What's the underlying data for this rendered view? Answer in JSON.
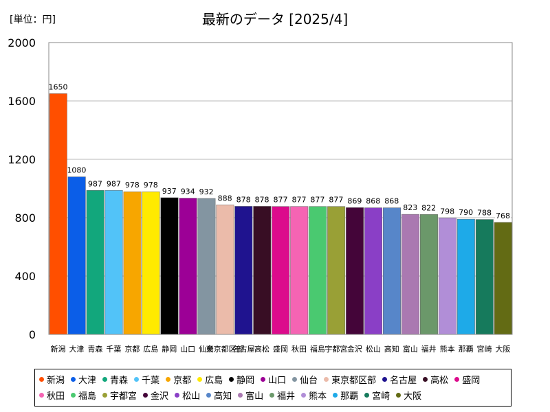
{
  "unit_label": "[単位：円]",
  "chart_data": {
    "type": "bar",
    "title": "最新のデータ [2025/4]",
    "xlabel": "",
    "ylabel": "",
    "ylim": [
      0,
      2000
    ],
    "yticks": [
      0,
      400,
      800,
      1200,
      1600,
      2000
    ],
    "grid": true,
    "legend_position": "bottom",
    "categories": [
      "新潟",
      "大津",
      "青森",
      "千葉",
      "京都",
      "広島",
      "静岡",
      "山口",
      "仙台",
      "東京都区部",
      "名古屋",
      "高松",
      "盛岡",
      "秋田",
      "福島",
      "宇都宮",
      "金沢",
      "松山",
      "高知",
      "富山",
      "福井",
      "熊本",
      "那覇",
      "宮崎",
      "大阪"
    ],
    "values": [
      1650,
      1080,
      987,
      987,
      978,
      978,
      937,
      934,
      932,
      888,
      878,
      878,
      877,
      877,
      877,
      877,
      869,
      868,
      868,
      823,
      822,
      798,
      790,
      788,
      768
    ],
    "colors": [
      "#ff4f00",
      "#0b5ee8",
      "#12a77c",
      "#52c3f8",
      "#f7a600",
      "#ffea00",
      "#000000",
      "#9c0096",
      "#8395a1",
      "#ebbbaa",
      "#1f138f",
      "#380e24",
      "#dc0b8c",
      "#f564b3",
      "#4ac970",
      "#99a036",
      "#440539",
      "#8a3fc6",
      "#5786c9",
      "#aa79b1",
      "#6b986a",
      "#b18ed7",
      "#1eaae8",
      "#167a5c",
      "#636b14"
    ]
  }
}
